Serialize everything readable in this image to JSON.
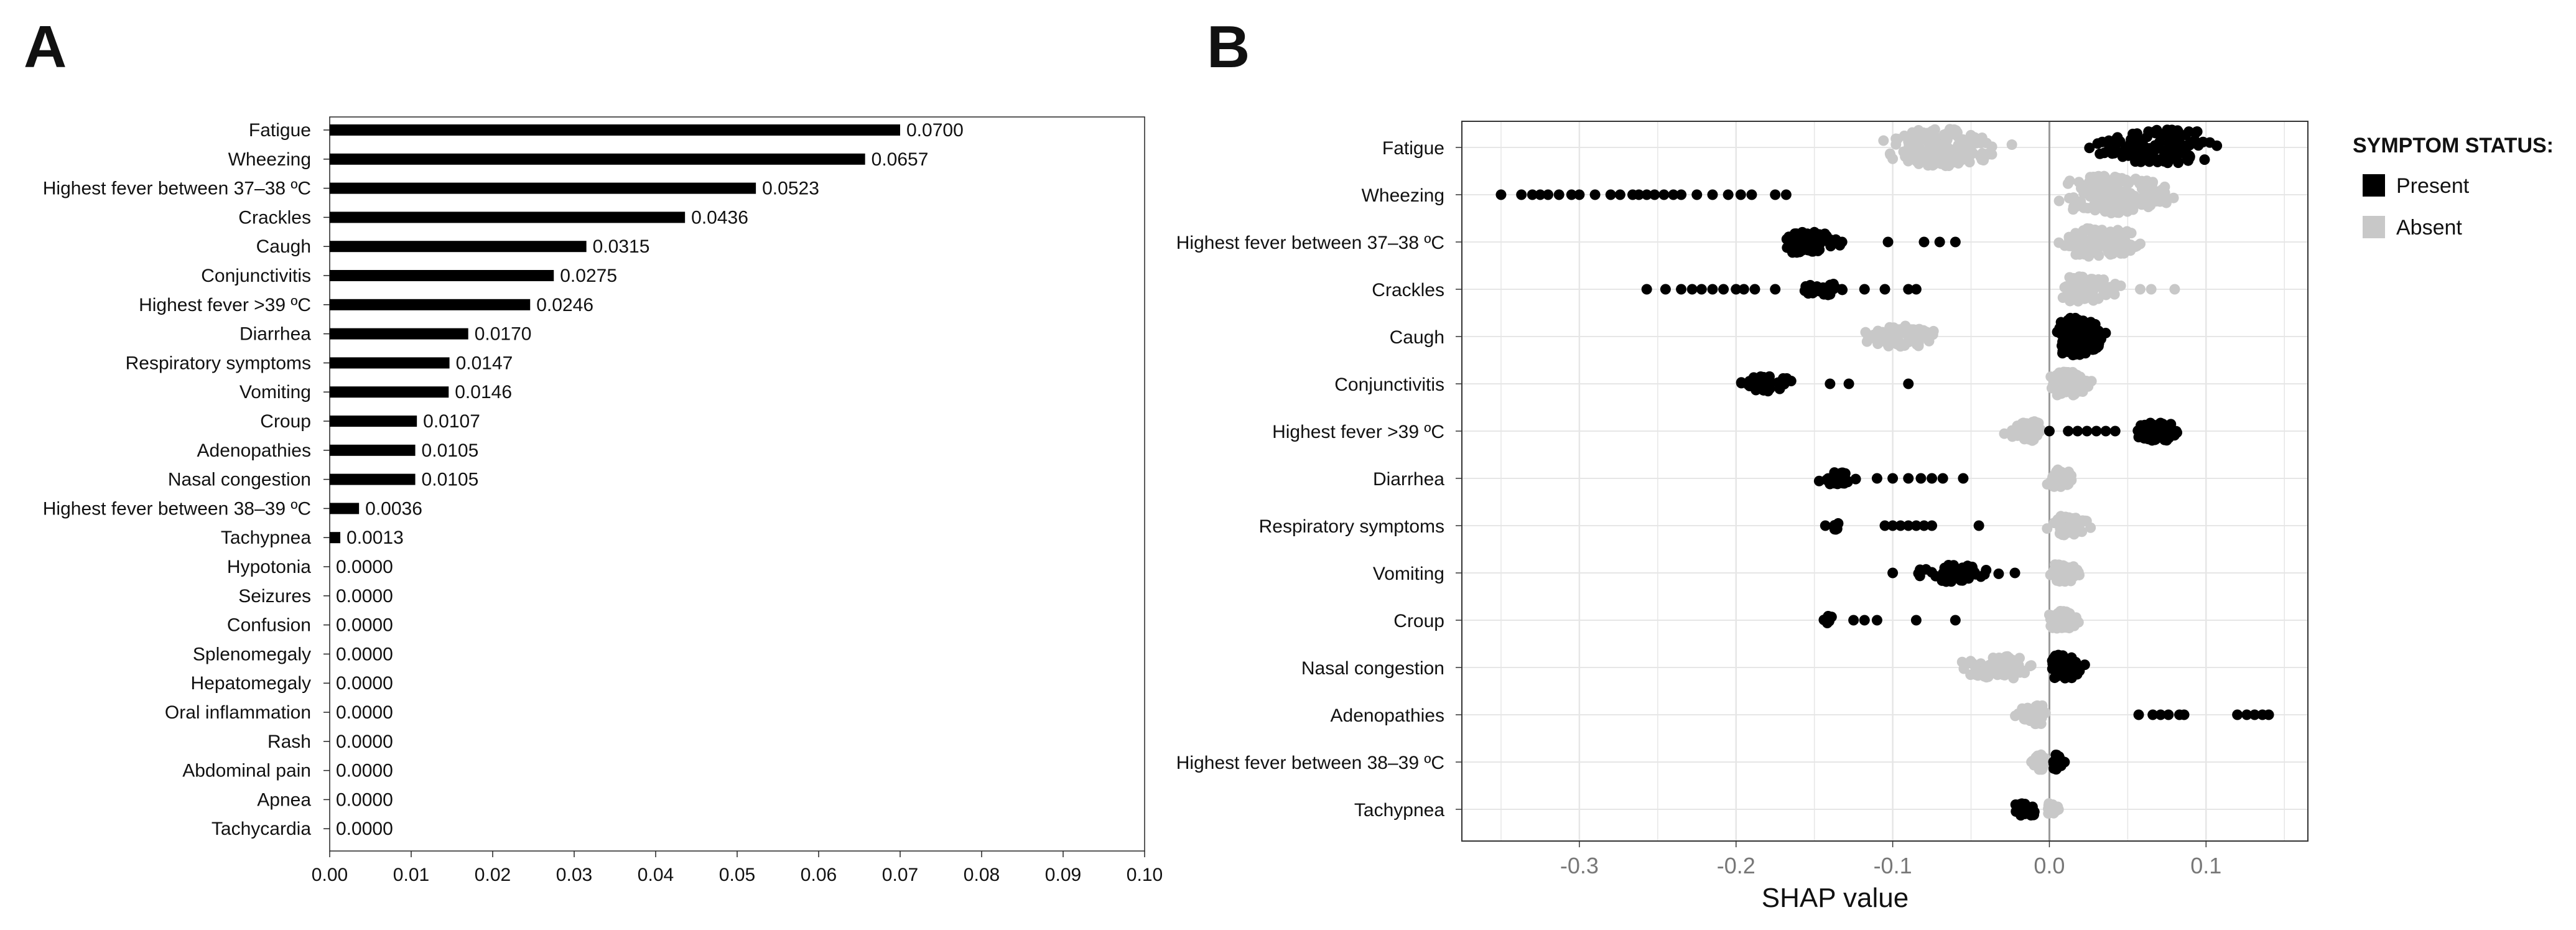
{
  "panel_a_letter": "A",
  "panel_b_letter": "B",
  "chart_data": [
    {
      "type": "bar",
      "orientation": "horizontal",
      "title": "",
      "xlabel": "",
      "ylabel": "",
      "xlim": [
        0,
        0.1
      ],
      "xticks": [
        "0.00",
        "0.01",
        "0.02",
        "0.03",
        "0.04",
        "0.05",
        "0.06",
        "0.07",
        "0.08",
        "0.09",
        "0.10"
      ],
      "bar_color": "#000000",
      "categories": [
        "Fatigue",
        "Wheezing",
        "Highest fever between 37–38 ºC",
        "Crackles",
        "Caugh",
        "Conjunctivitis",
        "Highest fever >39 ºC",
        "Diarrhea",
        "Respiratory symptoms",
        "Vomiting",
        "Croup",
        "Adenopathies",
        "Nasal congestion",
        "Highest fever between 38–39 ºC",
        "Tachypnea",
        "Hypotonia",
        "Seizures",
        "Confusion",
        "Splenomegaly",
        "Hepatomegaly",
        "Oral inflammation",
        "Rash",
        "Abdominal pain",
        "Apnea",
        "Tachycardia"
      ],
      "values": [
        0.07,
        0.0657,
        0.0523,
        0.0436,
        0.0315,
        0.0275,
        0.0246,
        0.017,
        0.0147,
        0.0146,
        0.0107,
        0.0105,
        0.0105,
        0.0036,
        0.0013,
        0,
        0,
        0,
        0,
        0,
        0,
        0,
        0,
        0,
        0
      ],
      "value_labels": [
        "0.0700",
        "0.0657",
        "0.0523",
        "0.0436",
        "0.0315",
        "0.0275",
        "0.0246",
        "0.0170",
        "0.0147",
        "0.0146",
        "0.0107",
        "0.0105",
        "0.0105",
        "0.0036",
        "0.0013",
        "0.0000",
        "0.0000",
        "0.0000",
        "0.0000",
        "0.0000",
        "0.0000",
        "0.0000",
        "0.0000",
        "0.0000",
        "0.0000"
      ]
    },
    {
      "type": "scatter",
      "subtype": "beeswarm",
      "title": "",
      "xlabel": "SHAP value",
      "ylabel": "",
      "xlim": [
        -0.375,
        0.165
      ],
      "xticks": [
        -0.3,
        -0.2,
        -0.1,
        0.0,
        0.1
      ],
      "xtick_labels": [
        "-0.3",
        "-0.2",
        "-0.1",
        "0.0",
        "0.1"
      ],
      "grid": true,
      "legend_position": "right",
      "legend_title": "SYMPTOM STATUS:",
      "colors": {
        "present": "#000000",
        "absent": "#c8c8c8",
        "grid": "#e6e6e6",
        "zero_line": "#9a9a9a"
      },
      "series_names": [
        "Present",
        "Absent"
      ],
      "features": [
        {
          "name": "Fatigue",
          "present": {
            "range": [
              0.02,
              0.112
            ],
            "center": 0.077,
            "count": 140,
            "outliers": []
          },
          "absent": {
            "range": [
              -0.117,
              -0.02
            ],
            "center": -0.07,
            "count": 160,
            "outliers": []
          }
        },
        {
          "name": "Wheezing",
          "present": {
            "range": [
              -0.35,
              -0.17
            ],
            "center": -0.26,
            "count": 0,
            "outliers": [
              -0.35,
              -0.337,
              -0.33,
              -0.325,
              -0.32,
              -0.313,
              -0.305,
              -0.3,
              -0.29,
              -0.28,
              -0.274,
              -0.266,
              -0.262,
              -0.257,
              -0.252,
              -0.246,
              -0.24,
              -0.235,
              -0.225,
              -0.215,
              -0.205,
              -0.197,
              -0.19,
              -0.175,
              -0.168
            ]
          },
          "absent": {
            "range": [
              0.0,
              0.09
            ],
            "center": 0.035,
            "count": 170,
            "outliers": []
          }
        },
        {
          "name": "Highest fever between 37–38 ºC",
          "present": {
            "range": [
              -0.18,
              -0.125
            ],
            "center": -0.16,
            "count": 70,
            "outliers": [
              -0.103,
              -0.08,
              -0.07,
              -0.06
            ]
          },
          "absent": {
            "range": [
              0.0,
              0.068
            ],
            "center": 0.03,
            "count": 110,
            "outliers": []
          }
        },
        {
          "name": "Crackles",
          "present": {
            "range": [
              -0.165,
              -0.125
            ],
            "center": -0.145,
            "count": 25,
            "outliers": [
              -0.257,
              -0.245,
              -0.235,
              -0.228,
              -0.222,
              -0.215,
              -0.208,
              -0.2,
              -0.195,
              -0.188,
              -0.175,
              -0.118,
              -0.105,
              -0.09,
              -0.085
            ]
          },
          "absent": {
            "range": [
              0.0,
              0.05
            ],
            "center": 0.02,
            "count": 90,
            "outliers": [
              0.058,
              0.065,
              0.08
            ]
          }
        },
        {
          "name": "Caugh",
          "present": {
            "range": [
              0.002,
              0.04
            ],
            "center": 0.016,
            "count": 150,
            "outliers": []
          },
          "absent": {
            "range": [
              -0.13,
              -0.065
            ],
            "center": -0.09,
            "count": 70,
            "outliers": []
          }
        },
        {
          "name": "Conjunctivitis",
          "present": {
            "range": [
              -0.205,
              -0.155
            ],
            "center": -0.18,
            "count": 40,
            "outliers": [
              -0.14,
              -0.128,
              -0.09
            ]
          },
          "absent": {
            "range": [
              -0.003,
              0.03
            ],
            "center": 0.01,
            "count": 90,
            "outliers": []
          }
        },
        {
          "name": "Highest fever >39 ºC",
          "present": {
            "range": [
              0.048,
              0.088
            ],
            "center": 0.07,
            "count": 60,
            "outliers": [
              0.0,
              0.012,
              0.018,
              0.024,
              0.03,
              0.036,
              0.042
            ]
          },
          "absent": {
            "range": [
              -0.035,
              0.0
            ],
            "center": -0.01,
            "count": 60,
            "outliers": []
          }
        },
        {
          "name": "Diarrhea",
          "present": {
            "range": [
              -0.15,
              -0.118
            ],
            "center": -0.135,
            "count": 25,
            "outliers": [
              -0.11,
              -0.1,
              -0.09,
              -0.082,
              -0.075,
              -0.068,
              -0.055
            ]
          },
          "absent": {
            "range": [
              -0.003,
              0.02
            ],
            "center": 0.006,
            "count": 50,
            "outliers": []
          }
        },
        {
          "name": "Respiratory symptoms",
          "present": {
            "range": [
              -0.14,
              -0.13
            ],
            "center": -0.135,
            "count": 6,
            "outliers": [
              -0.143,
              -0.105,
              -0.1,
              -0.095,
              -0.09,
              -0.085,
              -0.08,
              -0.075,
              -0.045
            ]
          },
          "absent": {
            "range": [
              -0.003,
              0.03
            ],
            "center": 0.01,
            "count": 60,
            "outliers": []
          }
        },
        {
          "name": "Vomiting",
          "present": {
            "range": [
              -0.09,
              -0.03
            ],
            "center": -0.06,
            "count": 55,
            "outliers": [
              -0.1,
              -0.022
            ]
          },
          "absent": {
            "range": [
              -0.002,
              0.025
            ],
            "center": 0.008,
            "count": 55,
            "outliers": []
          }
        },
        {
          "name": "Croup",
          "present": {
            "range": [
              -0.15,
              -0.135
            ],
            "center": -0.142,
            "count": 6,
            "outliers": [
              -0.125,
              -0.118,
              -0.11,
              -0.085,
              -0.06
            ]
          },
          "absent": {
            "range": [
              -0.003,
              0.022
            ],
            "center": 0.007,
            "count": 55,
            "outliers": []
          }
        },
        {
          "name": "Nasal congestion",
          "present": {
            "range": [
              -0.002,
              0.025
            ],
            "center": 0.007,
            "count": 90,
            "outliers": []
          },
          "absent": {
            "range": [
              -0.073,
              -0.005
            ],
            "center": -0.025,
            "count": 75,
            "outliers": []
          }
        },
        {
          "name": "Adenopathies",
          "present": {
            "range": [
              0.055,
              0.14
            ],
            "center": 0.1,
            "count": 0,
            "outliers": [
              0.057,
              0.066,
              0.071,
              0.076,
              0.083,
              0.086,
              0.12,
              0.126,
              0.131,
              0.136,
              0.14
            ]
          },
          "absent": {
            "range": [
              -0.027,
              0.0
            ],
            "center": -0.005,
            "count": 60,
            "outliers": []
          }
        },
        {
          "name": "Highest fever between 38–39 ºC",
          "present": {
            "range": [
              0.0,
              0.01
            ],
            "center": 0.004,
            "count": 45,
            "outliers": []
          },
          "absent": {
            "range": [
              -0.012,
              0.0
            ],
            "center": -0.005,
            "count": 45,
            "outliers": []
          }
        },
        {
          "name": "Tachypnea",
          "present": {
            "range": [
              -0.03,
              -0.003
            ],
            "center": -0.015,
            "count": 30,
            "outliers": []
          },
          "absent": {
            "range": [
              -0.004,
              0.008
            ],
            "center": 0.0,
            "count": 25,
            "outliers": []
          }
        }
      ]
    }
  ]
}
